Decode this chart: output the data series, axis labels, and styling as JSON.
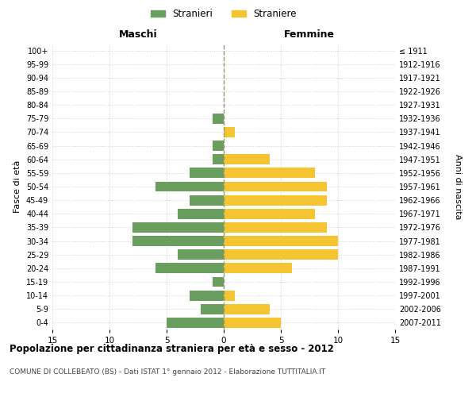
{
  "age_groups": [
    "100+",
    "95-99",
    "90-94",
    "85-89",
    "80-84",
    "75-79",
    "70-74",
    "65-69",
    "60-64",
    "55-59",
    "50-54",
    "45-49",
    "40-44",
    "35-39",
    "30-34",
    "25-29",
    "20-24",
    "15-19",
    "10-14",
    "5-9",
    "0-4"
  ],
  "birth_years": [
    "≤ 1911",
    "1912-1916",
    "1917-1921",
    "1922-1926",
    "1927-1931",
    "1932-1936",
    "1937-1941",
    "1942-1946",
    "1947-1951",
    "1952-1956",
    "1957-1961",
    "1962-1966",
    "1967-1971",
    "1972-1976",
    "1977-1981",
    "1982-1986",
    "1987-1991",
    "1992-1996",
    "1997-2001",
    "2002-2006",
    "2007-2011"
  ],
  "males": [
    0,
    0,
    0,
    0,
    0,
    1,
    0,
    1,
    1,
    3,
    6,
    3,
    4,
    8,
    8,
    4,
    6,
    1,
    3,
    2,
    5
  ],
  "females": [
    0,
    0,
    0,
    0,
    0,
    0,
    1,
    0,
    4,
    8,
    9,
    9,
    8,
    9,
    10,
    10,
    6,
    0,
    1,
    4,
    5
  ],
  "male_color": "#6a9e5f",
  "female_color": "#f5c432",
  "background_color": "#ffffff",
  "grid_color": "#cccccc",
  "title": "Popolazione per cittadinanza straniera per età e sesso - 2012",
  "subtitle": "COMUNE DI COLLEBEATO (BS) - Dati ISTAT 1° gennaio 2012 - Elaborazione TUTTITALIA.IT",
  "ylabel_left": "Fasce di età",
  "ylabel_right": "Anni di nascita",
  "xlabel_left": "Maschi",
  "xlabel_right": "Femmine",
  "legend_male": "Stranieri",
  "legend_female": "Straniere",
  "xlim": 15,
  "centerline_color": "#999966"
}
